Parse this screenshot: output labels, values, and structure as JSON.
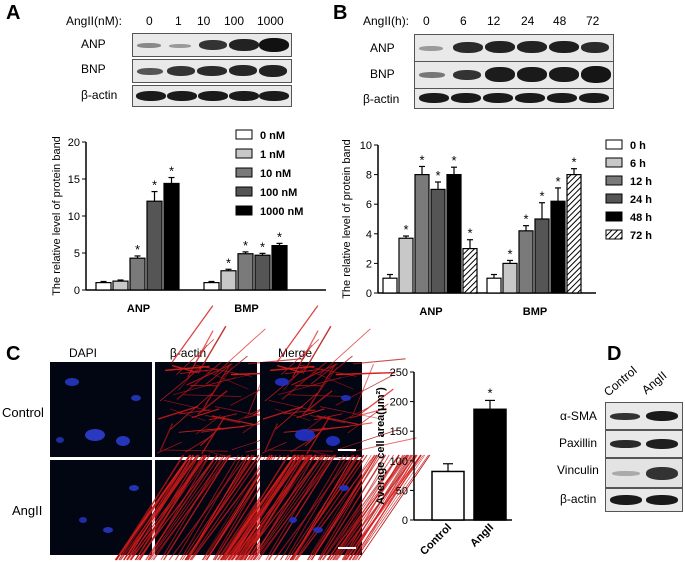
{
  "panels": {
    "A": "A",
    "B": "B",
    "C": "C",
    "D": "D"
  },
  "panelA": {
    "header_label": "AngII(nM):",
    "doses": [
      "0",
      "1",
      "10",
      "100",
      "1000"
    ],
    "rows": [
      "ANP",
      "BNP",
      "β-actin"
    ]
  },
  "panelB": {
    "header_label": "AngII(h):",
    "times": [
      "0",
      "6",
      "12",
      "24",
      "48",
      "72"
    ],
    "rows": [
      "ANP",
      "BNP",
      "β-actin"
    ]
  },
  "panelC": {
    "col_headers": [
      "DAPI",
      "β-actin",
      "Merge"
    ],
    "row_labels": [
      "Control",
      "AngII"
    ]
  },
  "panelD": {
    "col_labels": [
      "Control",
      "AngII"
    ],
    "rows": [
      "α-SMA",
      "Paxillin",
      "Vinculin",
      "β-actin"
    ]
  },
  "colors": {
    "black": "#000000",
    "dark": "#555555",
    "mid": "#7a7a7a",
    "light": "#c8c8c8",
    "white": "#ffffff",
    "actin_red": "#d61d1d",
    "nuclei_blue": "#2432c8"
  },
  "chart_data": [
    {
      "id": "chartA",
      "type": "bar",
      "ylabel": "The  relative level of protein band",
      "ylim": [
        0,
        20
      ],
      "yticks": [
        0,
        5,
        10,
        15,
        20
      ],
      "categories": [
        "ANP",
        "BMP"
      ],
      "series": [
        {
          "name": "0 nM",
          "values": [
            1.0,
            1.0
          ],
          "errors": [
            0.15,
            0.15
          ]
        },
        {
          "name": "1 nM",
          "values": [
            1.2,
            2.6
          ],
          "errors": [
            0.15,
            0.2
          ]
        },
        {
          "name": "10 nM",
          "values": [
            4.3,
            4.9
          ],
          "errors": [
            0.3,
            0.25
          ]
        },
        {
          "name": "100 nM",
          "values": [
            12.0,
            4.7
          ],
          "errors": [
            1.3,
            0.25
          ]
        },
        {
          "name": "1000 nM",
          "values": [
            14.4,
            6.0
          ],
          "errors": [
            0.8,
            0.3
          ]
        }
      ],
      "significance": [
        [
          "",
          "",
          "*",
          "*",
          "*"
        ],
        [
          "",
          "*",
          "*",
          "*",
          "*"
        ]
      ],
      "legend": "top-right"
    },
    {
      "id": "chartB",
      "type": "bar",
      "ylabel": "The  relative level of protein band",
      "ylim": [
        0,
        10
      ],
      "yticks": [
        0,
        2,
        4,
        6,
        8,
        10
      ],
      "categories": [
        "ANP",
        "BMP"
      ],
      "series": [
        {
          "name": "0 h",
          "values": [
            1.0,
            1.0
          ],
          "errors": [
            0.25,
            0.25
          ]
        },
        {
          "name": "6 h",
          "values": [
            3.7,
            2.0
          ],
          "errors": [
            0.15,
            0.2
          ]
        },
        {
          "name": "12 h",
          "values": [
            8.0,
            4.2
          ],
          "errors": [
            0.55,
            0.35
          ]
        },
        {
          "name": "24 h",
          "values": [
            7.0,
            5.0
          ],
          "errors": [
            0.5,
            1.1
          ]
        },
        {
          "name": "48 h",
          "values": [
            8.0,
            6.2
          ],
          "errors": [
            0.5,
            0.9
          ]
        },
        {
          "name": "72 h",
          "values": [
            3.0,
            8.0
          ],
          "errors": [
            0.6,
            0.4
          ]
        }
      ],
      "significance": [
        [
          "",
          "*",
          "*",
          "*",
          "*",
          "*"
        ],
        [
          "",
          "*",
          "*",
          "*",
          "*",
          "*"
        ]
      ],
      "legend": "right"
    },
    {
      "id": "chartC",
      "type": "bar",
      "ylabel": "Average cell area(μm²)",
      "ylim": [
        0,
        250
      ],
      "yticks": [
        0,
        50,
        100,
        150,
        200,
        250
      ],
      "categories": [
        "Control",
        "AngII"
      ],
      "values": [
        82,
        187
      ],
      "errors": [
        13,
        15
      ],
      "significance": [
        "",
        "*"
      ]
    }
  ]
}
